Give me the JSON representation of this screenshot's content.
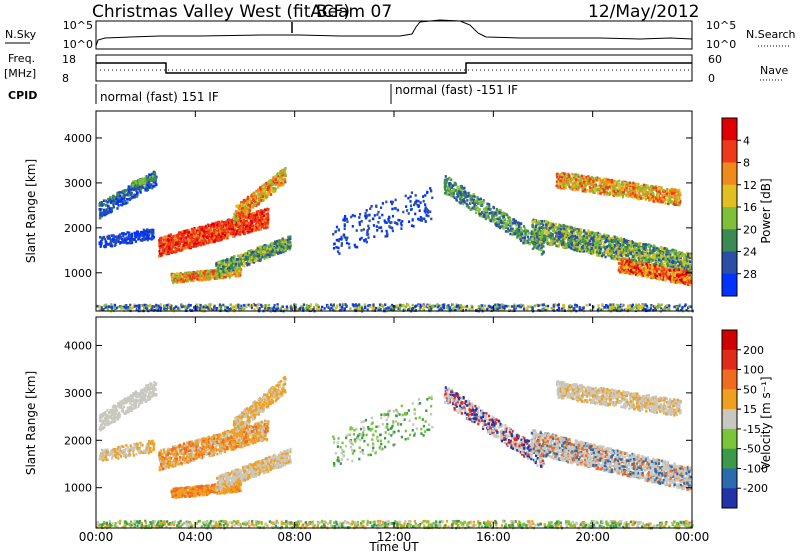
{
  "header": {
    "station": "Christmas Valley West (fitACF)",
    "beam": "Beam 07",
    "date": "12/May/2012"
  },
  "panels": {
    "nsky_label": "N.Sky",
    "nsky_ticks": [
      "10^5",
      "10^0"
    ],
    "nsearch_label": "N.Search",
    "nsearch_ticks": [
      "10^5",
      "10^0"
    ],
    "freq_label_1": "Freq.",
    "freq_label_2": "[MHz]",
    "freq_ticks": [
      "18",
      "8"
    ],
    "nave_label": "Nave",
    "nave_ticks": [
      "60",
      "0"
    ],
    "cpid_label": "CPID",
    "cpid_1": "normal (fast) 151 IF",
    "cpid_2": "normal (fast) -151 IF"
  },
  "chart_data": [
    {
      "type": "heatmap",
      "name": "power",
      "xlabel": "Time UT",
      "ylabel": "Slant Range [km]",
      "xlim": [
        0,
        24
      ],
      "ylim": [
        150,
        4600
      ],
      "yticks": [
        "1000",
        "2000",
        "3000",
        "4000"
      ],
      "colorbar_label": "Power [dB]",
      "colorbar_ticks": [
        "4",
        "8",
        "12",
        "16",
        "20",
        "24",
        "28"
      ],
      "colorbar_colors": [
        "#0033ff",
        "#2b4fa6",
        "#3a8a55",
        "#7fbf3a",
        "#e0c020",
        "#f08a1a",
        "#ef3a1a",
        "#e00000"
      ]
    },
    {
      "type": "heatmap",
      "name": "velocity",
      "xlabel": "Time UT",
      "ylabel": "Slant Range [km]",
      "xlim": [
        0,
        24
      ],
      "ylim": [
        150,
        4600
      ],
      "yticks": [
        "1000",
        "2000",
        "3000",
        "4000"
      ],
      "xticks": [
        "00:00",
        "04:00",
        "08:00",
        "12:00",
        "16:00",
        "20:00",
        "00:00"
      ],
      "colorbar_label": "Velocity [m s⁻¹]",
      "colorbar_ticks": [
        "200",
        "100",
        "50",
        "15",
        "-15",
        "-50",
        "-100",
        "-200"
      ],
      "colorbar_colors": [
        "#2233aa",
        "#2a6bb0",
        "#3a9a4a",
        "#7ac63a",
        "#c8c8c0",
        "#f0a020",
        "#f06a20",
        "#e02a1a",
        "#d00000"
      ]
    }
  ]
}
